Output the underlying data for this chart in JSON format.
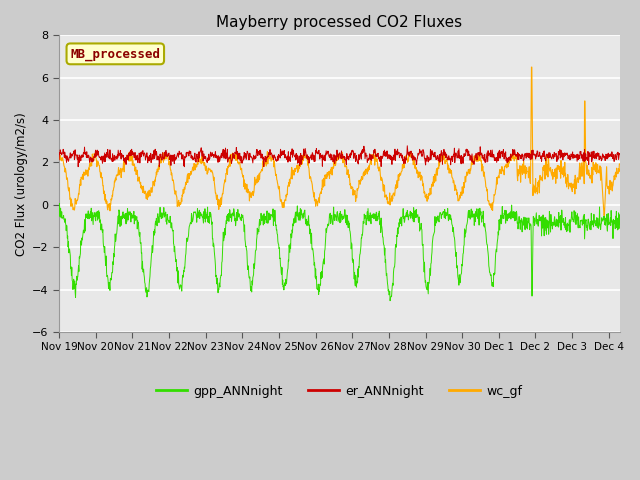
{
  "title": "Mayberry processed CO2 Fluxes",
  "ylabel": "CO2 Flux (urology/m2/s)",
  "ylim": [
    -6,
    8
  ],
  "yticks": [
    -6,
    -4,
    -2,
    0,
    2,
    4,
    6,
    8
  ],
  "fig_bg": "#cccccc",
  "ax_bg": "#e8e8e8",
  "grid_color": "#ffffff",
  "colors": {
    "gpp": "#33dd00",
    "er": "#cc0000",
    "wc": "#ffaa00"
  },
  "legend_label": "MB_processed",
  "legend_text_color": "#8b0000",
  "legend_bg": "#ffffcc",
  "legend_border": "#aaaa00",
  "series_labels": [
    "gpp_ANNnight",
    "er_ANNnight",
    "wc_gf"
  ],
  "x_tick_labels": [
    "Nov 19",
    "Nov 20",
    "Nov 21",
    "Nov 22",
    "Nov 23",
    "Nov 24",
    "Nov 25",
    "Nov 26",
    "Nov 27",
    "Nov 28",
    "Nov 29",
    "Nov 30",
    "Dec 1",
    "Dec 2",
    "Dec 3",
    "Dec 4"
  ],
  "total_days": 15.3,
  "n_points": 1500,
  "seed": 7
}
